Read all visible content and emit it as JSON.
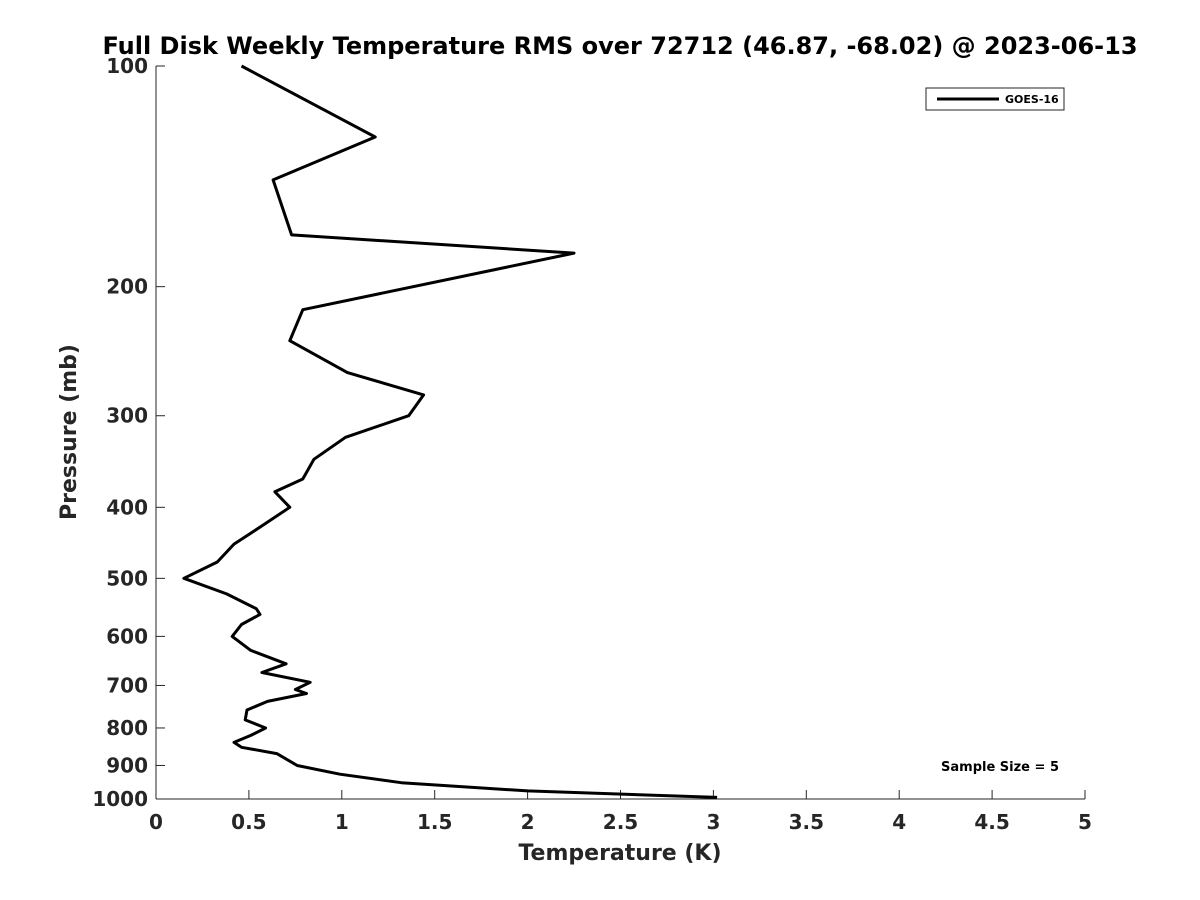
{
  "chart_data": {
    "type": "line",
    "title": "Full Disk Weekly Temperature RMS over 72712 (46.87, -68.02) @ 2023-06-13",
    "xlabel": "Temperature (K)",
    "ylabel": "Pressure (mb)",
    "xlim": [
      0,
      5
    ],
    "ylim": [
      100,
      1000
    ],
    "y_scale": "log",
    "y_reversed": true,
    "x_ticks": [
      "0",
      "0.5",
      "1",
      "1.5",
      "2",
      "2.5",
      "3",
      "3.5",
      "4",
      "4.5",
      "5"
    ],
    "y_ticks": [
      "100",
      "200",
      "300",
      "400",
      "500",
      "600",
      "700",
      "800",
      "900",
      "1000"
    ],
    "grid": false,
    "legend": {
      "position": "top-right",
      "entries": [
        "GOES-16"
      ]
    },
    "annotation": "Sample Size = 5",
    "series": [
      {
        "name": "GOES-16",
        "color": "#000000",
        "points": [
          [
            0.46,
            100
          ],
          [
            1.18,
            125
          ],
          [
            0.63,
            143
          ],
          [
            0.73,
            170
          ],
          [
            2.25,
            180
          ],
          [
            0.79,
            215
          ],
          [
            0.72,
            237
          ],
          [
            1.03,
            262
          ],
          [
            1.44,
            281
          ],
          [
            1.36,
            300
          ],
          [
            1.02,
            321
          ],
          [
            0.85,
            344
          ],
          [
            0.79,
            366
          ],
          [
            0.64,
            381
          ],
          [
            0.72,
            400
          ],
          [
            0.57,
            424
          ],
          [
            0.42,
            449
          ],
          [
            0.33,
            475
          ],
          [
            0.15,
            500
          ],
          [
            0.38,
            525
          ],
          [
            0.54,
            550
          ],
          [
            0.56,
            560
          ],
          [
            0.46,
            578
          ],
          [
            0.41,
            600
          ],
          [
            0.51,
            627
          ],
          [
            0.7,
            654
          ],
          [
            0.57,
            672
          ],
          [
            0.83,
            693
          ],
          [
            0.75,
            709
          ],
          [
            0.81,
            718
          ],
          [
            0.6,
            736
          ],
          [
            0.49,
            756
          ],
          [
            0.48,
            780
          ],
          [
            0.59,
            800
          ],
          [
            0.51,
            819
          ],
          [
            0.42,
            837
          ],
          [
            0.46,
            850
          ],
          [
            0.65,
            867
          ],
          [
            0.76,
            900
          ],
          [
            0.99,
            925
          ],
          [
            1.32,
            950
          ],
          [
            2.0,
            975
          ],
          [
            3.02,
            995
          ]
        ]
      }
    ]
  }
}
